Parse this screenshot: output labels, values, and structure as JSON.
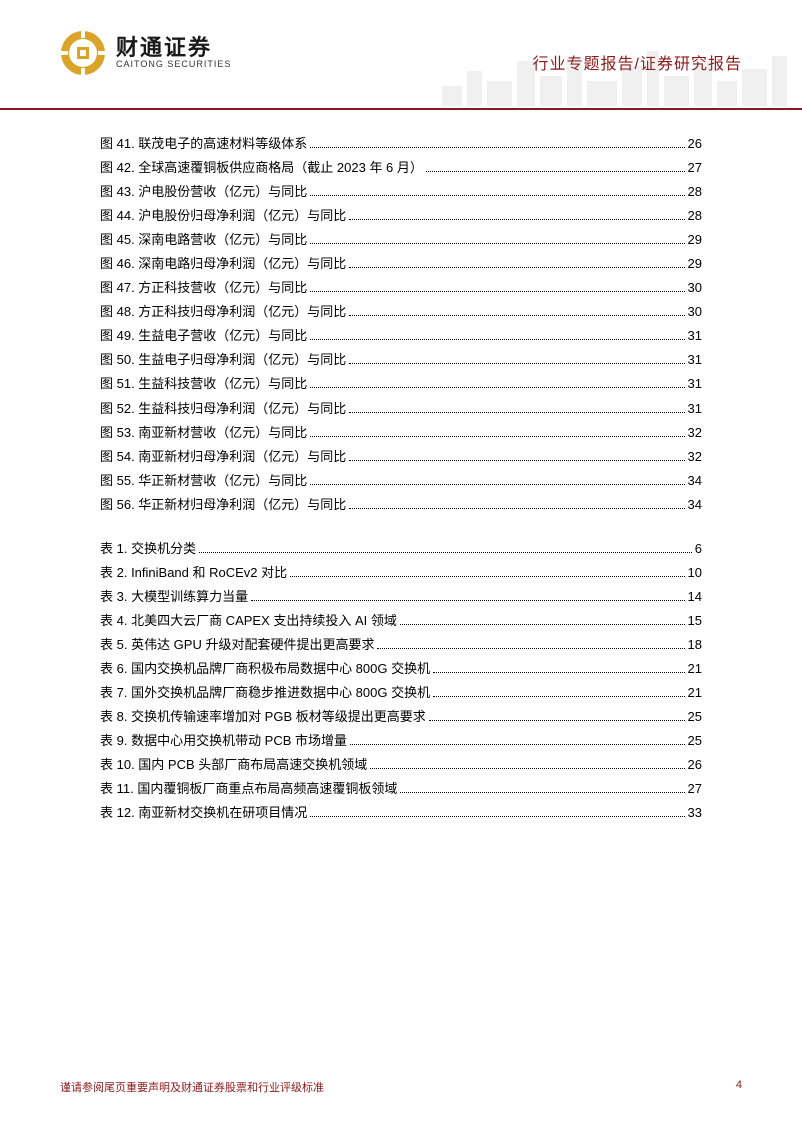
{
  "header": {
    "logo_cn": "财通证券",
    "logo_en": "CAITONG SECURITIES",
    "title": "行业专题报告/证券研究报告",
    "logo_colors": {
      "outer": "#d9a428",
      "inner": "#8b1a1a"
    }
  },
  "figures": [
    {
      "label": "图 41. 联茂电子的高速材料等级体系",
      "page": "26"
    },
    {
      "label": "图 42. 全球高速覆铜板供应商格局（截止 2023 年 6 月）",
      "page": "27"
    },
    {
      "label": "图 43. 沪电股份营收（亿元）与同比",
      "page": "28"
    },
    {
      "label": "图 44. 沪电股份归母净利润（亿元）与同比",
      "page": "28"
    },
    {
      "label": "图 45. 深南电路营收（亿元）与同比",
      "page": "29"
    },
    {
      "label": "图 46. 深南电路归母净利润（亿元）与同比",
      "page": "29"
    },
    {
      "label": "图 47. 方正科技营收（亿元）与同比",
      "page": "30"
    },
    {
      "label": "图 48. 方正科技归母净利润（亿元）与同比",
      "page": "30"
    },
    {
      "label": "图 49. 生益电子营收（亿元）与同比",
      "page": "31"
    },
    {
      "label": "图 50. 生益电子归母净利润（亿元）与同比",
      "page": "31"
    },
    {
      "label": "图 51. 生益科技营收（亿元）与同比",
      "page": "31"
    },
    {
      "label": "图 52. 生益科技归母净利润（亿元）与同比",
      "page": "31"
    },
    {
      "label": "图 53. 南亚新材营收（亿元）与同比",
      "page": "32"
    },
    {
      "label": "图 54. 南亚新材归母净利润（亿元）与同比",
      "page": "32"
    },
    {
      "label": "图 55. 华正新材营收（亿元）与同比",
      "page": "34"
    },
    {
      "label": "图 56. 华正新材归母净利润（亿元）与同比",
      "page": "34"
    }
  ],
  "tables": [
    {
      "label": "表 1. 交换机分类",
      "page": "6"
    },
    {
      "label": "表 2. InfiniBand 和 RoCEv2 对比",
      "page": "10"
    },
    {
      "label": "表 3. 大模型训练算力当量",
      "page": "14"
    },
    {
      "label": "表 4. 北美四大云厂商 CAPEX 支出持续投入 AI 领域",
      "page": "15"
    },
    {
      "label": "表 5. 英伟达 GPU 升级对配套硬件提出更高要求",
      "page": "18"
    },
    {
      "label": "表 6. 国内交换机品牌厂商积极布局数据中心 800G 交换机",
      "page": "21"
    },
    {
      "label": "表 7. 国外交换机品牌厂商稳步推进数据中心 800G 交换机",
      "page": "21"
    },
    {
      "label": "表 8. 交换机传输速率增加对 PGB 板材等级提出更高要求",
      "page": "25"
    },
    {
      "label": "表 9. 数据中心用交换机带动 PCB 市场增量",
      "page": "25"
    },
    {
      "label": "表 10. 国内 PCB 头部厂商布局高速交换机领域",
      "page": "26"
    },
    {
      "label": "表 11. 国内覆铜板厂商重点布局高频高速覆铜板领域",
      "page": "27"
    },
    {
      "label": "表 12. 南亚新材交换机在研项目情况",
      "page": "33"
    }
  ],
  "footer": {
    "disclaimer": "谨请参阅尾页重要声明及财通证券股票和行业评级标准",
    "page_num": "4"
  },
  "colors": {
    "accent": "#8b1a1a",
    "text": "#000000",
    "bg": "#ffffff"
  }
}
